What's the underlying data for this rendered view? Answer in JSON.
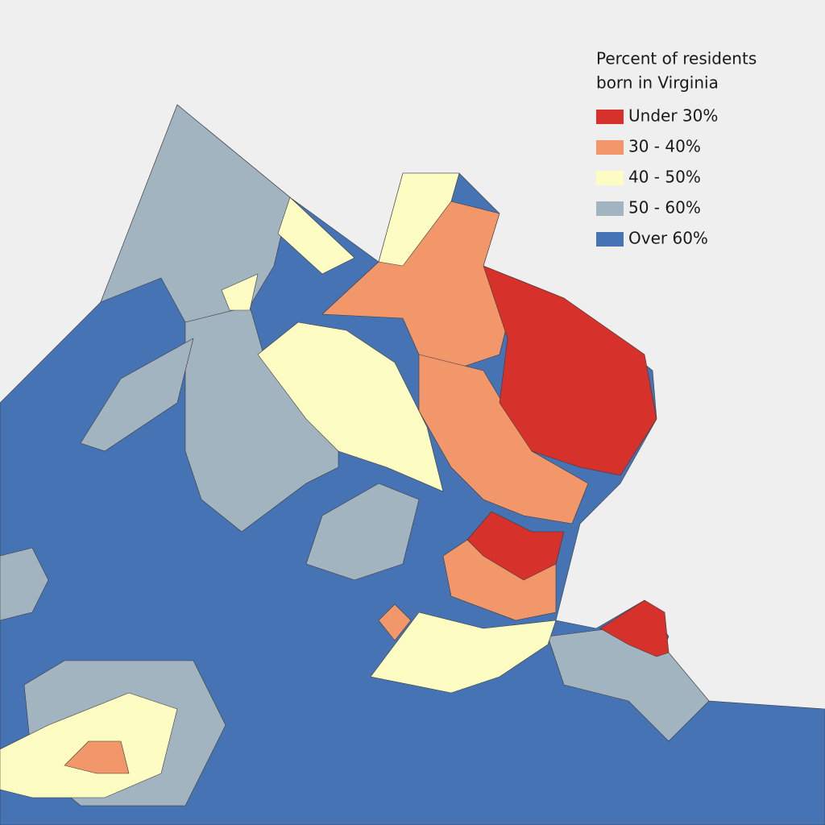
{
  "legend": {
    "title_lines": [
      "Percent of residents",
      "born in Virginia"
    ],
    "items": [
      {
        "label": "Under 30%",
        "color": "#d7312b"
      },
      {
        "label": "30 - 40%",
        "color": "#f1976a"
      },
      {
        "label": "40 - 50%",
        "color": "#fdfcc3"
      },
      {
        "label": "50 - 60%",
        "color": "#a3b4c1"
      },
      {
        "label": "Over 60%",
        "color": "#4573b4"
      }
    ]
  }
}
